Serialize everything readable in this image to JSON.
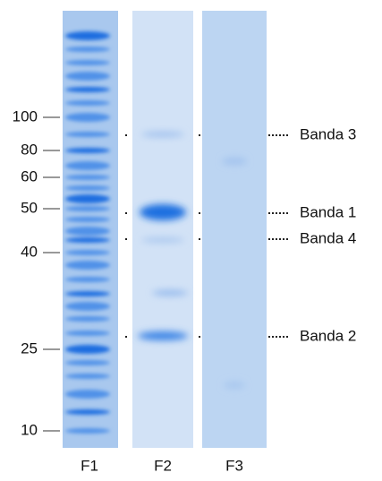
{
  "markers": [
    100,
    80,
    60,
    50,
    40,
    25,
    10
  ],
  "bands": [
    "Banda 3",
    "Banda 1",
    "Banda 4",
    "Banda 2"
  ],
  "lanes": [
    "F1",
    "F2",
    "F3"
  ]
}
